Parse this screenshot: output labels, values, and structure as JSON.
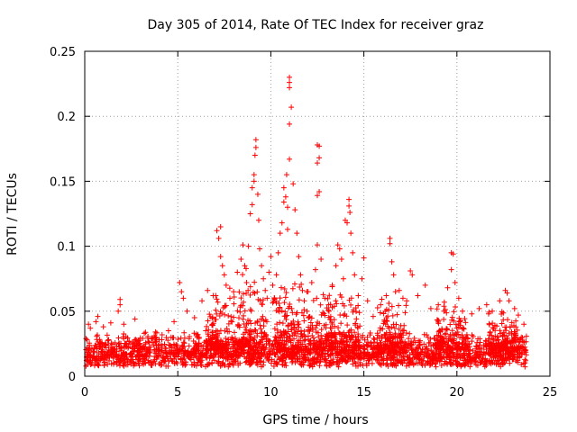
{
  "chart_data": {
    "type": "scatter",
    "title": "Day 305 of 2014, Rate Of TEC Index for receiver graz",
    "xlabel": "GPS time / hours",
    "ylabel": "ROTI / TECUs",
    "xlim": [
      0,
      25
    ],
    "ylim": [
      0,
      0.25
    ],
    "xticks": [
      0,
      5,
      10,
      15,
      20,
      25
    ],
    "yticks": [
      0,
      0.05,
      0.1,
      0.15,
      0.2,
      0.25
    ],
    "xtick_labels": [
      "0",
      "5",
      "10",
      "15",
      "20",
      "25"
    ],
    "ytick_labels": [
      "0",
      "0.05",
      "0.1",
      "0.15",
      "0.2",
      "0.25"
    ],
    "grid": true,
    "marker": "+",
    "color": "#ff0000",
    "baseline_band": [
      0.007,
      0.035
    ],
    "series": [
      {
        "name": "ROTI",
        "points": [
          [
            0.2,
            0.04
          ],
          [
            0.3,
            0.037
          ],
          [
            0.6,
            0.042
          ],
          [
            0.7,
            0.046
          ],
          [
            1.0,
            0.038
          ],
          [
            1.4,
            0.041
          ],
          [
            1.9,
            0.059
          ],
          [
            1.9,
            0.055
          ],
          [
            1.8,
            0.05
          ],
          [
            2.1,
            0.04
          ],
          [
            2.7,
            0.044
          ],
          [
            3.2,
            0.033
          ],
          [
            3.8,
            0.034
          ],
          [
            4.5,
            0.035
          ],
          [
            4.8,
            0.042
          ],
          [
            5.1,
            0.072
          ],
          [
            5.2,
            0.065
          ],
          [
            5.3,
            0.06
          ],
          [
            5.5,
            0.05
          ],
          [
            5.9,
            0.045
          ],
          [
            6.3,
            0.058
          ],
          [
            6.6,
            0.066
          ],
          [
            6.9,
            0.062
          ],
          [
            7.1,
            0.112
          ],
          [
            7.2,
            0.106
          ],
          [
            7.3,
            0.115
          ],
          [
            7.3,
            0.092
          ],
          [
            7.4,
            0.085
          ],
          [
            7.5,
            0.078
          ],
          [
            7.6,
            0.07
          ],
          [
            7.8,
            0.06
          ],
          [
            8.0,
            0.065
          ],
          [
            8.2,
            0.08
          ],
          [
            8.4,
            0.09
          ],
          [
            8.5,
            0.101
          ],
          [
            8.6,
            0.085
          ],
          [
            8.7,
            0.072
          ],
          [
            8.8,
            0.1
          ],
          [
            8.9,
            0.125
          ],
          [
            9.0,
            0.132
          ],
          [
            9.0,
            0.145
          ],
          [
            9.1,
            0.15
          ],
          [
            9.1,
            0.155
          ],
          [
            9.15,
            0.17
          ],
          [
            9.2,
            0.182
          ],
          [
            9.2,
            0.176
          ],
          [
            9.3,
            0.14
          ],
          [
            9.35,
            0.12
          ],
          [
            9.4,
            0.098
          ],
          [
            9.5,
            0.085
          ],
          [
            9.6,
            0.075
          ],
          [
            9.7,
            0.066
          ],
          [
            9.8,
            0.06
          ],
          [
            9.9,
            0.08
          ],
          [
            10.0,
            0.092
          ],
          [
            10.1,
            0.07
          ],
          [
            10.2,
            0.06
          ],
          [
            10.3,
            0.078
          ],
          [
            10.4,
            0.095
          ],
          [
            10.5,
            0.11
          ],
          [
            10.6,
            0.118
          ],
          [
            10.7,
            0.134
          ],
          [
            10.7,
            0.145
          ],
          [
            10.8,
            0.138
          ],
          [
            10.85,
            0.155
          ],
          [
            10.9,
            0.13
          ],
          [
            10.9,
            0.113
          ],
          [
            11.0,
            0.194
          ],
          [
            11.0,
            0.167
          ],
          [
            11.1,
            0.207
          ],
          [
            11.0,
            0.23
          ],
          [
            11.0,
            0.226
          ],
          [
            11.0,
            0.222
          ],
          [
            11.2,
            0.148
          ],
          [
            11.3,
            0.128
          ],
          [
            11.4,
            0.11
          ],
          [
            11.5,
            0.092
          ],
          [
            11.6,
            0.078
          ],
          [
            11.7,
            0.066
          ],
          [
            11.8,
            0.058
          ],
          [
            12.0,
            0.065
          ],
          [
            12.2,
            0.072
          ],
          [
            12.4,
            0.082
          ],
          [
            12.5,
            0.101
          ],
          [
            12.5,
            0.139
          ],
          [
            12.6,
            0.142
          ],
          [
            12.5,
            0.164
          ],
          [
            12.6,
            0.168
          ],
          [
            12.5,
            0.178
          ],
          [
            12.6,
            0.177
          ],
          [
            12.7,
            0.09
          ],
          [
            12.9,
            0.06
          ],
          [
            13.1,
            0.055
          ],
          [
            13.3,
            0.07
          ],
          [
            13.5,
            0.085
          ],
          [
            13.6,
            0.101
          ],
          [
            13.7,
            0.098
          ],
          [
            13.8,
            0.09
          ],
          [
            13.9,
            0.075
          ],
          [
            14.0,
            0.12
          ],
          [
            14.1,
            0.118
          ],
          [
            14.2,
            0.136
          ],
          [
            14.2,
            0.131
          ],
          [
            14.25,
            0.126
          ],
          [
            14.3,
            0.11
          ],
          [
            14.4,
            0.095
          ],
          [
            14.5,
            0.078
          ],
          [
            14.7,
            0.062
          ],
          [
            14.9,
            0.075
          ],
          [
            15.0,
            0.091
          ],
          [
            15.2,
            0.058
          ],
          [
            15.5,
            0.046
          ],
          [
            15.9,
            0.055
          ],
          [
            16.2,
            0.062
          ],
          [
            16.4,
            0.106
          ],
          [
            16.4,
            0.102
          ],
          [
            16.5,
            0.088
          ],
          [
            16.6,
            0.078
          ],
          [
            16.7,
            0.065
          ],
          [
            16.9,
            0.066
          ],
          [
            17.1,
            0.06
          ],
          [
            17.3,
            0.058
          ],
          [
            17.5,
            0.081
          ],
          [
            17.6,
            0.078
          ],
          [
            17.9,
            0.062
          ],
          [
            18.3,
            0.07
          ],
          [
            18.6,
            0.052
          ],
          [
            19.0,
            0.055
          ],
          [
            19.3,
            0.05
          ],
          [
            19.5,
            0.068
          ],
          [
            19.7,
            0.082
          ],
          [
            19.7,
            0.095
          ],
          [
            19.8,
            0.094
          ],
          [
            19.9,
            0.072
          ],
          [
            20.1,
            0.06
          ],
          [
            20.3,
            0.05
          ],
          [
            20.8,
            0.048
          ],
          [
            21.2,
            0.052
          ],
          [
            21.6,
            0.055
          ],
          [
            21.9,
            0.05
          ],
          [
            22.3,
            0.058
          ],
          [
            22.6,
            0.066
          ],
          [
            22.7,
            0.064
          ],
          [
            22.8,
            0.058
          ],
          [
            23.1,
            0.052
          ],
          [
            23.3,
            0.047
          ],
          [
            23.6,
            0.04
          ]
        ]
      }
    ]
  }
}
